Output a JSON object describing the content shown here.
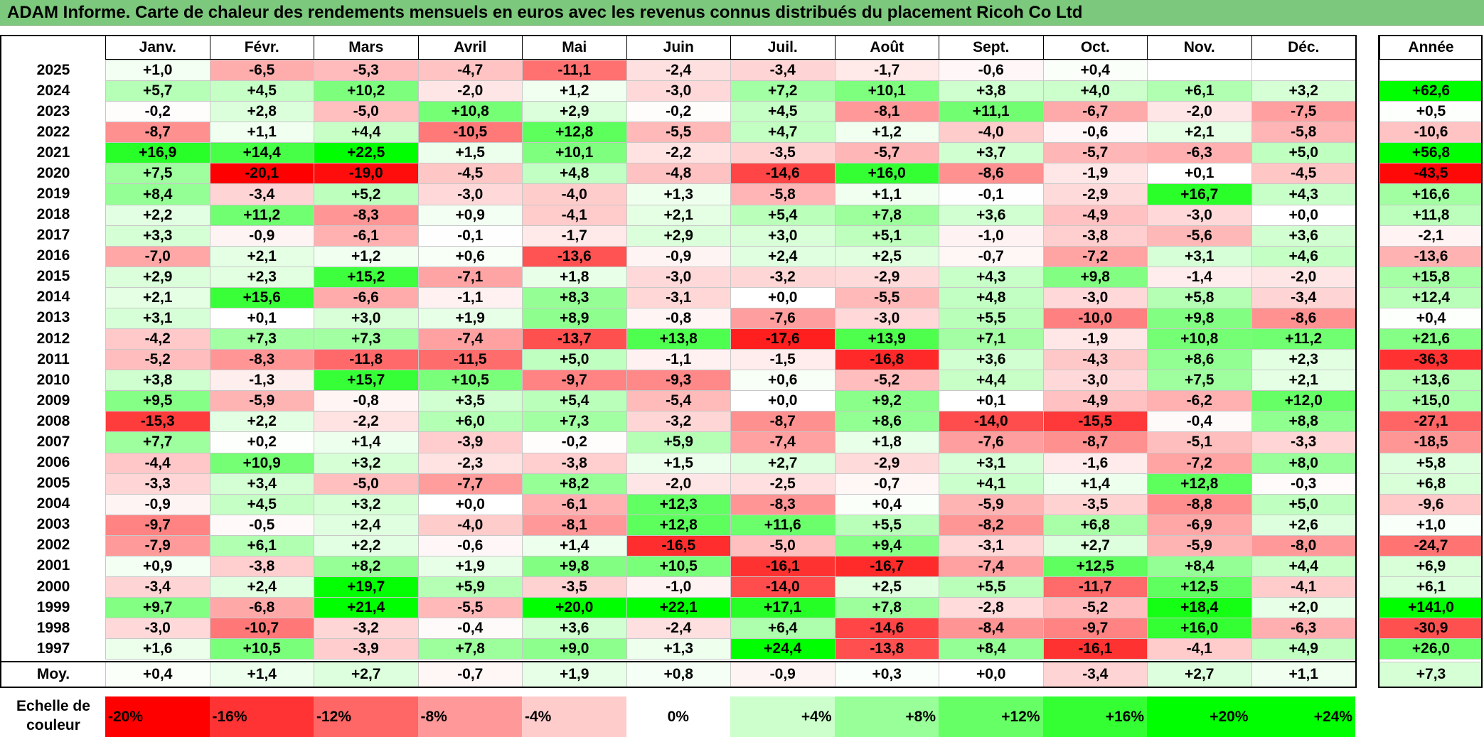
{
  "title": "ADAM Informe. Carte de chaleur des rendements mensuels en euros avec les revenus connus distribués du placement Ricoh Co Ltd",
  "chart_data": {
    "type": "heatmap",
    "months": [
      "Janv.",
      "Févr.",
      "Mars",
      "Avril",
      "Mai",
      "Juin",
      "Juil.",
      "Août",
      "Sept.",
      "Oct.",
      "Nov.",
      "Déc."
    ],
    "annual_header": "Année",
    "rows": [
      {
        "year": "2025",
        "values": [
          "+1,0",
          "-6,5",
          "-5,3",
          "-4,7",
          "-11,1",
          "-2,4",
          "-3,4",
          "-1,7",
          "-0,6",
          "+0,4",
          "",
          ""
        ],
        "annual": ""
      },
      {
        "year": "2024",
        "values": [
          "+5,7",
          "+4,5",
          "+10,2",
          "-2,0",
          "+1,2",
          "-3,0",
          "+7,2",
          "+10,1",
          "+3,8",
          "+4,0",
          "+6,1",
          "+3,2"
        ],
        "annual": "+62,6"
      },
      {
        "year": "2023",
        "values": [
          "-0,2",
          "+2,8",
          "-5,0",
          "+10,8",
          "+2,9",
          "-0,2",
          "+4,5",
          "-8,1",
          "+11,1",
          "-6,7",
          "-2,0",
          "-7,5"
        ],
        "annual": "+0,5"
      },
      {
        "year": "2022",
        "values": [
          "-8,7",
          "+1,1",
          "+4,4",
          "-10,5",
          "+12,8",
          "-5,5",
          "+4,7",
          "+1,2",
          "-4,0",
          "-0,6",
          "+2,1",
          "-5,8"
        ],
        "annual": "-10,6"
      },
      {
        "year": "2021",
        "values": [
          "+16,9",
          "+14,4",
          "+22,5",
          "+1,5",
          "+10,1",
          "-2,2",
          "-3,5",
          "-5,7",
          "+3,7",
          "-5,7",
          "-6,3",
          "+5,0"
        ],
        "annual": "+56,8"
      },
      {
        "year": "2020",
        "values": [
          "+7,5",
          "-20,1",
          "-19,0",
          "-4,5",
          "+4,8",
          "-4,8",
          "-14,6",
          "+16,0",
          "-8,6",
          "-1,9",
          "+0,1",
          "-4,5"
        ],
        "annual": "-43,5"
      },
      {
        "year": "2019",
        "values": [
          "+8,4",
          "-3,4",
          "+5,2",
          "-3,0",
          "-4,0",
          "+1,3",
          "-5,8",
          "+1,1",
          "-0,1",
          "-2,9",
          "+16,7",
          "+4,3"
        ],
        "annual": "+16,6"
      },
      {
        "year": "2018",
        "values": [
          "+2,2",
          "+11,2",
          "-8,3",
          "+0,9",
          "-4,1",
          "+2,1",
          "+5,4",
          "+7,8",
          "+3,6",
          "-4,9",
          "-3,0",
          "+0,0"
        ],
        "annual": "+11,8"
      },
      {
        "year": "2017",
        "values": [
          "+3,3",
          "-0,9",
          "-6,1",
          "-0,1",
          "-1,7",
          "+2,9",
          "+3,0",
          "+5,1",
          "-1,0",
          "-3,8",
          "-5,6",
          "+3,6"
        ],
        "annual": "-2,1"
      },
      {
        "year": "2016",
        "values": [
          "-7,0",
          "+2,1",
          "+1,2",
          "+0,6",
          "-13,6",
          "-0,9",
          "+2,4",
          "+2,5",
          "-0,7",
          "-7,2",
          "+3,1",
          "+4,6"
        ],
        "annual": "-13,6"
      },
      {
        "year": "2015",
        "values": [
          "+2,9",
          "+2,3",
          "+15,2",
          "-7,1",
          "+1,8",
          "-3,0",
          "-3,2",
          "-2,9",
          "+4,3",
          "+9,8",
          "-1,4",
          "-2,0"
        ],
        "annual": "+15,8"
      },
      {
        "year": "2014",
        "values": [
          "+2,1",
          "+15,6",
          "-6,6",
          "-1,1",
          "+8,3",
          "-3,1",
          "+0,0",
          "-5,5",
          "+4,8",
          "-3,0",
          "+5,8",
          "-3,4"
        ],
        "annual": "+12,4"
      },
      {
        "year": "2013",
        "values": [
          "+3,1",
          "+0,1",
          "+3,0",
          "+1,9",
          "+8,9",
          "-0,8",
          "-7,6",
          "-3,0",
          "+5,5",
          "-10,0",
          "+9,8",
          "-8,6"
        ],
        "annual": "+0,4"
      },
      {
        "year": "2012",
        "values": [
          "-4,2",
          "+7,3",
          "+7,3",
          "-7,4",
          "-13,7",
          "+13,8",
          "-17,6",
          "+13,9",
          "+7,1",
          "-1,9",
          "+10,8",
          "+11,2"
        ],
        "annual": "+21,6"
      },
      {
        "year": "2011",
        "values": [
          "-5,2",
          "-8,3",
          "-11,8",
          "-11,5",
          "+5,0",
          "-1,1",
          "-1,5",
          "-16,8",
          "+3,6",
          "-4,3",
          "+8,6",
          "+2,3"
        ],
        "annual": "-36,3"
      },
      {
        "year": "2010",
        "values": [
          "+3,8",
          "-1,3",
          "+15,7",
          "+10,5",
          "-9,7",
          "-9,3",
          "+0,6",
          "-5,2",
          "+4,4",
          "-3,0",
          "+7,5",
          "+2,1"
        ],
        "annual": "+13,6"
      },
      {
        "year": "2009",
        "values": [
          "+9,5",
          "-5,9",
          "-0,8",
          "+3,5",
          "+5,4",
          "-5,4",
          "+0,0",
          "+9,2",
          "+0,1",
          "-4,9",
          "-6,2",
          "+12,0"
        ],
        "annual": "+15,0"
      },
      {
        "year": "2008",
        "values": [
          "-15,3",
          "+2,2",
          "-2,2",
          "+6,0",
          "+7,3",
          "-3,2",
          "-8,7",
          "+8,6",
          "-14,0",
          "-15,5",
          "-0,4",
          "+8,8"
        ],
        "annual": "-27,1"
      },
      {
        "year": "2007",
        "values": [
          "+7,7",
          "+0,2",
          "+1,4",
          "-3,9",
          "-0,2",
          "+5,9",
          "-7,4",
          "+1,8",
          "-7,6",
          "-8,7",
          "-5,1",
          "-3,3"
        ],
        "annual": "-18,5"
      },
      {
        "year": "2006",
        "values": [
          "-4,4",
          "+10,9",
          "+3,2",
          "-2,3",
          "-3,8",
          "+1,5",
          "+2,7",
          "-2,9",
          "+3,1",
          "-1,6",
          "-7,2",
          "+8,0"
        ],
        "annual": "+5,8"
      },
      {
        "year": "2005",
        "values": [
          "-3,3",
          "+3,4",
          "-5,0",
          "-7,7",
          "+8,2",
          "-2,0",
          "-2,5",
          "-0,7",
          "+4,1",
          "+1,4",
          "+12,8",
          "-0,3"
        ],
        "annual": "+6,8"
      },
      {
        "year": "2004",
        "values": [
          "-0,9",
          "+4,5",
          "+3,2",
          "+0,0",
          "-6,1",
          "+12,3",
          "-8,3",
          "+0,4",
          "-5,9",
          "-3,5",
          "-8,8",
          "+5,0"
        ],
        "annual": "-9,6"
      },
      {
        "year": "2003",
        "values": [
          "-9,7",
          "-0,5",
          "+2,4",
          "-4,0",
          "-8,1",
          "+12,8",
          "+11,6",
          "+5,5",
          "-8,2",
          "+6,8",
          "-6,9",
          "+2,6"
        ],
        "annual": "+1,0"
      },
      {
        "year": "2002",
        "values": [
          "-7,9",
          "+6,1",
          "+2,2",
          "-0,6",
          "+1,4",
          "-16,5",
          "-5,0",
          "+9,4",
          "-3,1",
          "+2,7",
          "-5,9",
          "-8,0"
        ],
        "annual": "-24,7"
      },
      {
        "year": "2001",
        "values": [
          "+0,9",
          "-3,8",
          "+8,2",
          "+1,9",
          "+9,8",
          "+10,5",
          "-16,1",
          "-16,7",
          "-7,4",
          "+12,5",
          "+8,4",
          "+4,4"
        ],
        "annual": "+6,9"
      },
      {
        "year": "2000",
        "values": [
          "-3,4",
          "+2,4",
          "+19,7",
          "+5,9",
          "-3,5",
          "-1,0",
          "-14,0",
          "+2,5",
          "+5,5",
          "-11,7",
          "+12,5",
          "-4,1"
        ],
        "annual": "+6,1"
      },
      {
        "year": "1999",
        "values": [
          "+9,7",
          "-6,8",
          "+21,4",
          "-5,5",
          "+20,0",
          "+22,1",
          "+17,1",
          "+7,8",
          "-2,8",
          "-5,2",
          "+18,4",
          "+2,0"
        ],
        "annual": "+141,0"
      },
      {
        "year": "1998",
        "values": [
          "-3,0",
          "-10,7",
          "-3,2",
          "-0,4",
          "+3,6",
          "-2,4",
          "+6,4",
          "-14,6",
          "-8,4",
          "-9,7",
          "+16,0",
          "-6,3"
        ],
        "annual": "-30,9"
      },
      {
        "year": "1997",
        "values": [
          "+1,6",
          "+10,5",
          "-3,9",
          "+7,8",
          "+9,0",
          "+1,3",
          "+24,4",
          "-13,8",
          "+8,4",
          "-16,1",
          "-4,1",
          "+4,9"
        ],
        "annual": "+26,0"
      }
    ],
    "average": {
      "label": "Moy.",
      "values": [
        "+0,4",
        "+1,4",
        "+2,7",
        "-0,7",
        "+1,9",
        "+0,8",
        "-0,9",
        "+0,3",
        "+0,0",
        "-3,4",
        "+2,7",
        "+1,1"
      ],
      "annual": "+7,3"
    },
    "color_scale": {
      "label": "Echelle de couleur",
      "steps": [
        "-20%",
        "-16%",
        "-12%",
        "-8%",
        "-4%",
        "0%",
        "+4%",
        "+8%",
        "+12%",
        "+16%",
        "+20%",
        "+24%"
      ],
      "negative_color": "#ff0000",
      "neutral_color": "#ffffff",
      "positive_color": "#00ff00"
    }
  }
}
